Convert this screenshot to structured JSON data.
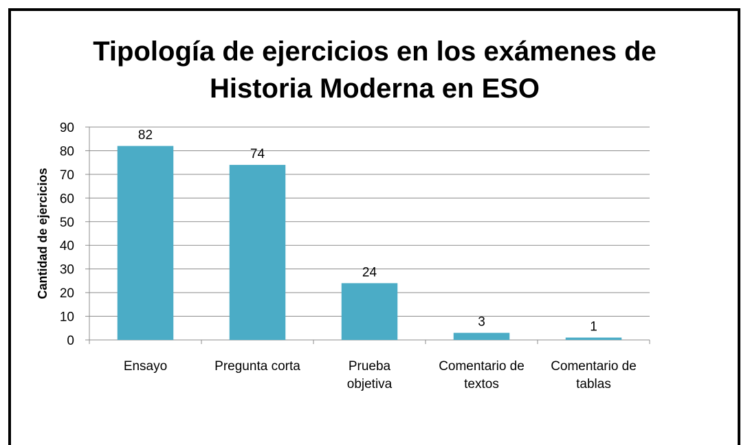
{
  "chart_data": {
    "type": "bar",
    "title": "Tipología de ejercicios en los exámenes de Historia Moderna en ESO",
    "y_label": "Cantidad de ejercicios",
    "categories": [
      "Ensayo",
      "Pregunta corta",
      "Prueba\nobjetiva",
      "Comentario de\ntextos",
      "Comentario de\ntablas"
    ],
    "values": [
      82,
      74,
      24,
      3,
      1
    ],
    "color": "#4bacc6",
    "ylim": [
      0,
      90
    ],
    "yticks": [
      0,
      10,
      20,
      30,
      40,
      50,
      60,
      70,
      80,
      90
    ],
    "grid": true
  }
}
